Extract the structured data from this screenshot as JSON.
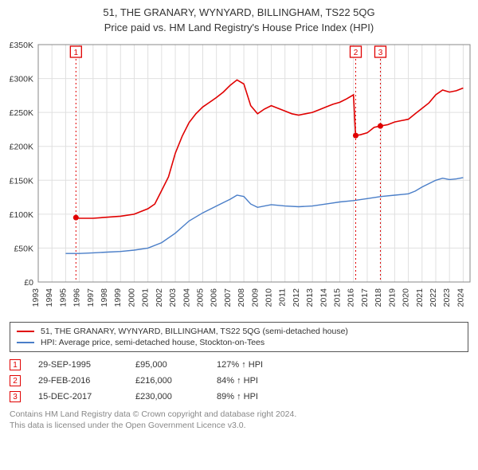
{
  "title_line1": "51, THE GRANARY, WYNYARD, BILLINGHAM, TS22 5QG",
  "title_line2": "Price paid vs. HM Land Registry's House Price Index (HPI)",
  "chart": {
    "type": "line",
    "background_color": "#ffffff",
    "plot_border_color": "#888888",
    "grid_color": "#e0e0e0",
    "x_years": [
      1993,
      1994,
      1995,
      1996,
      1997,
      1998,
      1999,
      2000,
      2001,
      2002,
      2003,
      2004,
      2005,
      2006,
      2007,
      2008,
      2009,
      2010,
      2011,
      2012,
      2013,
      2014,
      2015,
      2016,
      2017,
      2018,
      2019,
      2020,
      2021,
      2022,
      2023,
      2024
    ],
    "y_ticks": [
      0,
      50000,
      100000,
      150000,
      200000,
      250000,
      300000,
      350000
    ],
    "y_tick_labels": [
      "£0",
      "£50K",
      "£100K",
      "£150K",
      "£200K",
      "£250K",
      "£300K",
      "£350K"
    ],
    "ylim": [
      0,
      350000
    ],
    "xlim": [
      1993,
      2024.5
    ],
    "x_label_fontsize": 10.5,
    "x_label_rotation": -90,
    "series": [
      {
        "name": "property",
        "label": "51, THE GRANARY, WYNYARD, BILLINGHAM, TS22 5QG (semi-detached house)",
        "color": "#e00000",
        "line_width": 1.6,
        "points": [
          [
            1995.75,
            95000
          ],
          [
            1996,
            94000
          ],
          [
            1997,
            94000
          ],
          [
            1998,
            95500
          ],
          [
            1999,
            97000
          ],
          [
            2000,
            100000
          ],
          [
            2001,
            108000
          ],
          [
            2001.5,
            115000
          ],
          [
            2002,
            135000
          ],
          [
            2002.5,
            155000
          ],
          [
            2003,
            190000
          ],
          [
            2003.5,
            215000
          ],
          [
            2004,
            235000
          ],
          [
            2004.5,
            248000
          ],
          [
            2005,
            258000
          ],
          [
            2005.5,
            265000
          ],
          [
            2006,
            272000
          ],
          [
            2006.5,
            280000
          ],
          [
            2007,
            290000
          ],
          [
            2007.5,
            298000
          ],
          [
            2008,
            292000
          ],
          [
            2008.5,
            260000
          ],
          [
            2009,
            248000
          ],
          [
            2009.5,
            255000
          ],
          [
            2010,
            260000
          ],
          [
            2010.5,
            256000
          ],
          [
            2011,
            252000
          ],
          [
            2011.5,
            248000
          ],
          [
            2012,
            246000
          ],
          [
            2012.5,
            248000
          ],
          [
            2013,
            250000
          ],
          [
            2013.5,
            254000
          ],
          [
            2014,
            258000
          ],
          [
            2014.5,
            262000
          ],
          [
            2015,
            265000
          ],
          [
            2015.5,
            270000
          ],
          [
            2016,
            276000
          ],
          [
            2016.15,
            216000
          ],
          [
            2016.5,
            217000
          ],
          [
            2017,
            220000
          ],
          [
            2017.5,
            228000
          ],
          [
            2017.95,
            230000
          ],
          [
            2018.5,
            232000
          ],
          [
            2019,
            236000
          ],
          [
            2019.5,
            238000
          ],
          [
            2020,
            240000
          ],
          [
            2020.5,
            248000
          ],
          [
            2021,
            256000
          ],
          [
            2021.5,
            264000
          ],
          [
            2022,
            276000
          ],
          [
            2022.5,
            283000
          ],
          [
            2023,
            280000
          ],
          [
            2023.5,
            282000
          ],
          [
            2024,
            286000
          ]
        ]
      },
      {
        "name": "hpi",
        "label": "HPI: Average price, semi-detached house, Stockton-on-Tees",
        "color": "#4a7ec8",
        "line_width": 1.4,
        "points": [
          [
            1995,
            42000
          ],
          [
            1996,
            42000
          ],
          [
            1997,
            43000
          ],
          [
            1998,
            44000
          ],
          [
            1999,
            45000
          ],
          [
            2000,
            47000
          ],
          [
            2001,
            50000
          ],
          [
            2002,
            58000
          ],
          [
            2003,
            72000
          ],
          [
            2004,
            90000
          ],
          [
            2005,
            102000
          ],
          [
            2006,
            112000
          ],
          [
            2007,
            122000
          ],
          [
            2007.5,
            128000
          ],
          [
            2008,
            126000
          ],
          [
            2008.5,
            115000
          ],
          [
            2009,
            110000
          ],
          [
            2010,
            114000
          ],
          [
            2011,
            112000
          ],
          [
            2012,
            111000
          ],
          [
            2013,
            112000
          ],
          [
            2014,
            115000
          ],
          [
            2015,
            118000
          ],
          [
            2016,
            120000
          ],
          [
            2017,
            123000
          ],
          [
            2018,
            126000
          ],
          [
            2019,
            128000
          ],
          [
            2020,
            130000
          ],
          [
            2020.5,
            134000
          ],
          [
            2021,
            140000
          ],
          [
            2021.5,
            145000
          ],
          [
            2022,
            150000
          ],
          [
            2022.5,
            153000
          ],
          [
            2023,
            151000
          ],
          [
            2023.5,
            152000
          ],
          [
            2024,
            154000
          ]
        ]
      }
    ],
    "sale_markers": [
      {
        "n": "1",
        "x": 1995.75,
        "y": 95000
      },
      {
        "n": "2",
        "x": 2016.16,
        "y": 216000
      },
      {
        "n": "3",
        "x": 2017.96,
        "y": 230000
      }
    ],
    "marker_box_color": "#e00000",
    "marker_dot_color": "#e00000",
    "marker_dot_radius": 3.5
  },
  "legend": {
    "rows": [
      {
        "color": "#e00000",
        "text": "51, THE GRANARY, WYNYARD, BILLINGHAM, TS22 5QG (semi-detached house)"
      },
      {
        "color": "#4a7ec8",
        "text": "HPI: Average price, semi-detached house, Stockton-on-Tees"
      }
    ]
  },
  "events": [
    {
      "n": "1",
      "date": "29-SEP-1995",
      "price": "£95,000",
      "hpi": "127% ↑ HPI"
    },
    {
      "n": "2",
      "date": "29-FEB-2016",
      "price": "£216,000",
      "hpi": "84% ↑ HPI"
    },
    {
      "n": "3",
      "date": "15-DEC-2017",
      "price": "£230,000",
      "hpi": "89% ↑ HPI"
    }
  ],
  "footer_line1": "Contains HM Land Registry data © Crown copyright and database right 2024.",
  "footer_line2": "This data is licensed under the Open Government Licence v3.0."
}
